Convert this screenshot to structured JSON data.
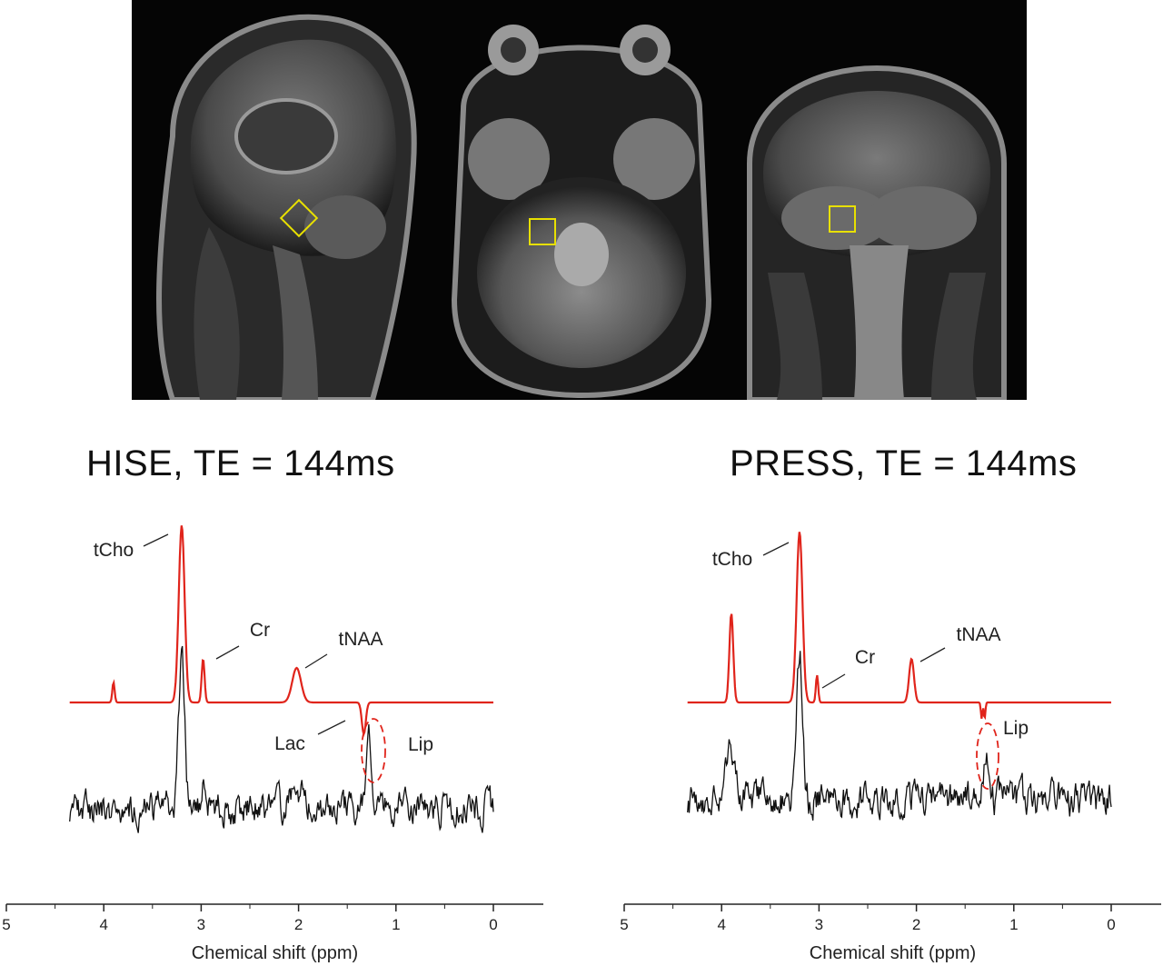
{
  "figure": {
    "mri_views": [
      {
        "name": "sagittal",
        "voxel_color": "#e8e000"
      },
      {
        "name": "axial",
        "voxel_color": "#e8e000"
      },
      {
        "name": "coronal",
        "voxel_color": "#e8e000"
      }
    ]
  },
  "colors": {
    "fit": "#e0241b",
    "measured": "#111111",
    "mri_background": "#050505"
  },
  "chart_data": [
    {
      "type": "line",
      "title": "HISE, TE = 144ms",
      "xlabel": "Chemical shift (ppm)",
      "xlim": [
        5,
        0
      ],
      "x_inverted": true,
      "xticks": [
        "5",
        "4",
        "3",
        "2",
        "1",
        "0"
      ],
      "x_range_plotted": [
        4.35,
        0.0
      ],
      "series": [
        {
          "style": "red",
          "baseline": 0,
          "peaks": [
            {
              "ppm": 3.9,
              "height": 22,
              "width": 0.012
            },
            {
              "ppm": 3.2,
              "height": 195,
              "width": 0.03
            },
            {
              "ppm": 2.98,
              "height": 48,
              "width": 0.015
            },
            {
              "ppm": 2.02,
              "height": 38,
              "width": 0.045
            },
            {
              "ppm": 1.33,
              "height": -35,
              "width": 0.02
            }
          ]
        },
        {
          "style": "black",
          "noisy": true,
          "peaks": [
            {
              "ppm": 3.2,
              "height": 170,
              "width": 0.03
            },
            {
              "ppm": 2.98,
              "height": 30,
              "width": 0.015
            },
            {
              "ppm": 2.02,
              "height": 28,
              "width": 0.04
            },
            {
              "ppm": 1.28,
              "height": 68,
              "width": 0.02
            }
          ]
        }
      ],
      "annotations": [
        {
          "label": "tCho",
          "ppm": 3.2
        },
        {
          "label": "Cr",
          "ppm": 2.98
        },
        {
          "label": "tNAA",
          "ppm": 2.02
        },
        {
          "label": "Lac",
          "ppm": 1.33
        },
        {
          "label": "Lip",
          "ppm": 1.28
        }
      ]
    },
    {
      "type": "line",
      "title": "PRESS, TE = 144ms",
      "xlabel": "Chemical shift (ppm)",
      "xlim": [
        5,
        0
      ],
      "x_inverted": true,
      "xticks": [
        "5",
        "4",
        "3",
        "2",
        "1",
        "0"
      ],
      "x_range_plotted": [
        4.35,
        0.0
      ],
      "series": [
        {
          "style": "red",
          "baseline": 0,
          "peaks": [
            {
              "ppm": 3.9,
              "height": 98,
              "width": 0.02
            },
            {
              "ppm": 3.2,
              "height": 188,
              "width": 0.03
            },
            {
              "ppm": 3.02,
              "height": 30,
              "width": 0.012
            },
            {
              "ppm": 2.05,
              "height": 48,
              "width": 0.025
            },
            {
              "ppm": 1.33,
              "height": -18,
              "width": 0.008
            },
            {
              "ppm": 1.3,
              "height": -18,
              "width": 0.008
            }
          ]
        },
        {
          "style": "black",
          "noisy": true,
          "peaks": [
            {
              "ppm": 3.2,
              "height": 160,
              "width": 0.03
            },
            {
              "ppm": 3.9,
              "height": 55,
              "width": 0.05
            },
            {
              "ppm": 1.28,
              "height": 50,
              "width": 0.03
            }
          ]
        }
      ],
      "annotations": [
        {
          "label": "tCho",
          "ppm": 3.2
        },
        {
          "label": "Cr",
          "ppm": 3.02
        },
        {
          "label": "tNAA",
          "ppm": 2.05
        },
        {
          "label": "Lip",
          "ppm": 1.3
        }
      ]
    }
  ]
}
